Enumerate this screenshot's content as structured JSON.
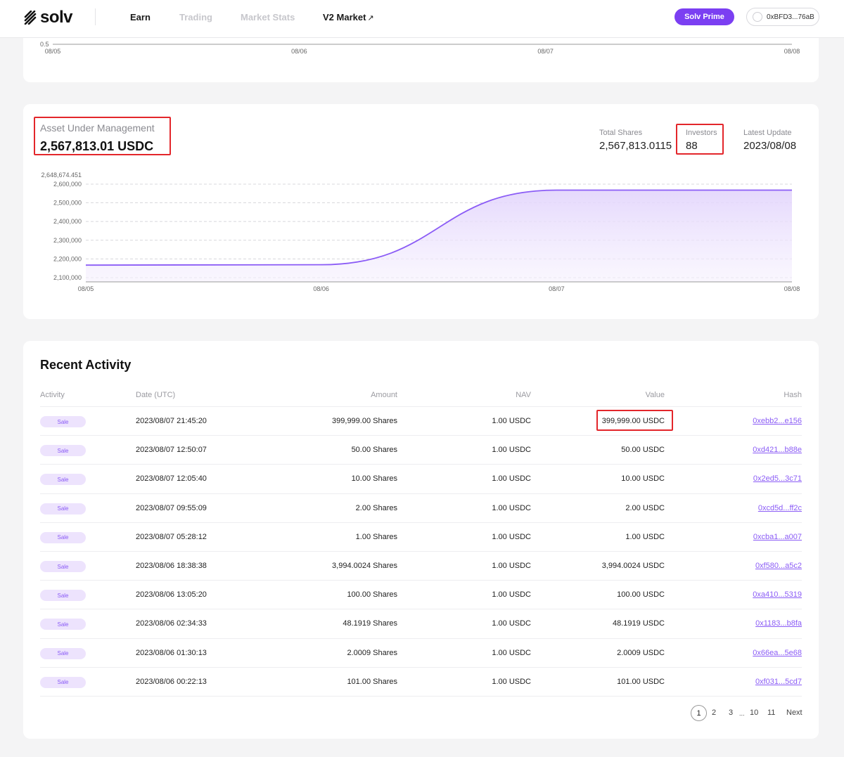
{
  "nav": {
    "logo_text": "solv",
    "items": [
      "Earn",
      "Trading",
      "Market Stats",
      "V2 Market"
    ],
    "v2_arrow": "↗",
    "prime_button": "Solv Prime",
    "wallet_address": "0xBFD3...76aB"
  },
  "top_chart": {
    "y_tick": "0.5",
    "x_ticks": [
      "08/05",
      "08/06",
      "08/07",
      "08/08"
    ]
  },
  "aum": {
    "label": "Asset Under Management",
    "value": "2,567,813.01 USDC",
    "stats": [
      {
        "label": "Total Shares",
        "value": "2,567,813.0115"
      },
      {
        "label": "Investors",
        "value": "88"
      },
      {
        "label": "Latest Update",
        "value": "2023/08/08"
      }
    ]
  },
  "chart_data": {
    "type": "area",
    "title": "",
    "xlabel": "",
    "ylabel": "",
    "x": [
      "08/05",
      "08/06",
      "08/07",
      "08/08"
    ],
    "y_ticks": [
      "2,648,674.451",
      "2,600,000",
      "2,500,000",
      "2,400,000",
      "2,300,000",
      "2,200,000",
      "2,100,000"
    ],
    "ylim": [
      2100000,
      2648674.451
    ],
    "series": [
      {
        "values": [
          2167000,
          2169000,
          2567813,
          2567813
        ]
      }
    ],
    "line_color": "#8b5cf6",
    "fill_color": "#ede3fd",
    "grid": true
  },
  "activity": {
    "title": "Recent Activity",
    "columns": [
      "Activity",
      "Date (UTC)",
      "Amount",
      "NAV",
      "Value",
      "Hash"
    ],
    "rows": [
      {
        "activity": "Sale",
        "date": "2023/08/07 21:45:20",
        "amount": "399,999.00 Shares",
        "nav": "1.00 USDC",
        "value": "399,999.00 USDC",
        "hash": "0xebb2...e156"
      },
      {
        "activity": "Sale",
        "date": "2023/08/07 12:50:07",
        "amount": "50.00 Shares",
        "nav": "1.00 USDC",
        "value": "50.00 USDC",
        "hash": "0xd421...b88e"
      },
      {
        "activity": "Sale",
        "date": "2023/08/07 12:05:40",
        "amount": "10.00 Shares",
        "nav": "1.00 USDC",
        "value": "10.00 USDC",
        "hash": "0x2ed5...3c71"
      },
      {
        "activity": "Sale",
        "date": "2023/08/07 09:55:09",
        "amount": "2.00 Shares",
        "nav": "1.00 USDC",
        "value": "2.00 USDC",
        "hash": "0xcd5d...ff2c"
      },
      {
        "activity": "Sale",
        "date": "2023/08/07 05:28:12",
        "amount": "1.00 Shares",
        "nav": "1.00 USDC",
        "value": "1.00 USDC",
        "hash": "0xcba1...a007"
      },
      {
        "activity": "Sale",
        "date": "2023/08/06 18:38:38",
        "amount": "3,994.0024 Shares",
        "nav": "1.00 USDC",
        "value": "3,994.0024 USDC",
        "hash": "0xf580...a5c2"
      },
      {
        "activity": "Sale",
        "date": "2023/08/06 13:05:20",
        "amount": "100.00 Shares",
        "nav": "1.00 USDC",
        "value": "100.00 USDC",
        "hash": "0xa410...5319"
      },
      {
        "activity": "Sale",
        "date": "2023/08/06 02:34:33",
        "amount": "48.1919 Shares",
        "nav": "1.00 USDC",
        "value": "48.1919 USDC",
        "hash": "0x1183...b8fa"
      },
      {
        "activity": "Sale",
        "date": "2023/08/06 01:30:13",
        "amount": "2.0009 Shares",
        "nav": "1.00 USDC",
        "value": "2.0009 USDC",
        "hash": "0x66ea...5e68"
      },
      {
        "activity": "Sale",
        "date": "2023/08/06 00:22:13",
        "amount": "101.00 Shares",
        "nav": "1.00 USDC",
        "value": "101.00 USDC",
        "hash": "0xf031...5cd7"
      }
    ]
  },
  "pagination": {
    "current": "1",
    "pages": [
      "2",
      "3",
      "...",
      "10",
      "11"
    ],
    "next": "Next"
  },
  "colors": {
    "accent": "#7b3ff2",
    "highlight_box": "#e3262b"
  }
}
